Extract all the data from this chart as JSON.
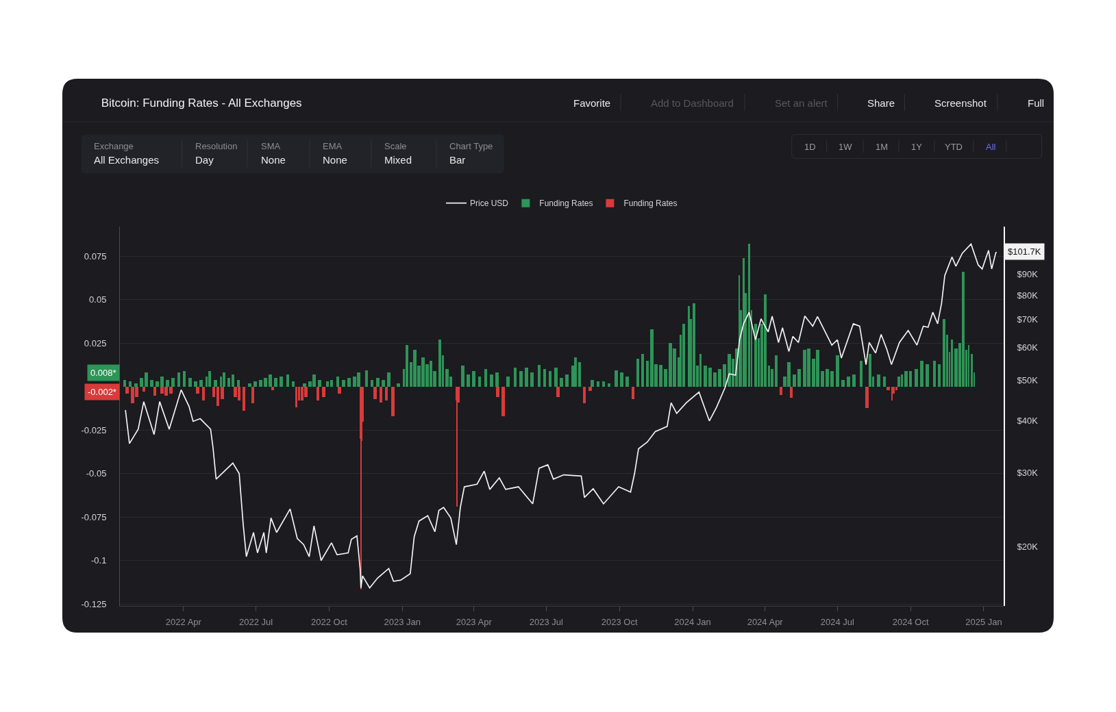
{
  "chart_data": {
    "type": "bar",
    "title": "Bitcoin: Funding Rates - All Exchanges",
    "xlim": [
      "2022-01-11",
      "2025-01-26"
    ],
    "xticks": [
      {
        "value": "2022-04-01",
        "label": "2022 Apr"
      },
      {
        "value": "2022-07-01",
        "label": "2022 Jul"
      },
      {
        "value": "2022-10-01",
        "label": "2022 Oct"
      },
      {
        "value": "2023-01-01",
        "label": "2023 Jan"
      },
      {
        "value": "2023-04-01",
        "label": "2023 Apr"
      },
      {
        "value": "2023-07-01",
        "label": "2023 Jul"
      },
      {
        "value": "2023-10-01",
        "label": "2023 Oct"
      },
      {
        "value": "2024-01-01",
        "label": "2024 Jan"
      },
      {
        "value": "2024-04-01",
        "label": "2024 Apr"
      },
      {
        "value": "2024-07-01",
        "label": "2024 Jul"
      },
      {
        "value": "2024-10-01",
        "label": "2024 Oct"
      },
      {
        "value": "2025-01-01",
        "label": "2025 Jan"
      }
    ],
    "ylim": [
      -0.126,
      0.092
    ],
    "yticks": [
      0.075,
      0.05,
      0.025,
      -0.025,
      -0.05,
      -0.075,
      -0.1,
      -0.125
    ],
    "y2lim": [
      14400,
      117000
    ],
    "y2ticks": [
      {
        "value": 20000,
        "label": "$20K"
      },
      {
        "value": 30000,
        "label": "$30K"
      },
      {
        "value": 40000,
        "label": "$40K"
      },
      {
        "value": 50000,
        "label": "$50K"
      },
      {
        "value": 60000,
        "label": "$60K"
      },
      {
        "value": 70000,
        "label": "$70K"
      },
      {
        "value": 80000,
        "label": "$80K"
      },
      {
        "value": 90000,
        "label": "$90K"
      }
    ],
    "log": "y2",
    "grid": "y",
    "legend": "top",
    "series": [
      {
        "name": "Price USD",
        "type": "line",
        "axis": "y2",
        "color": "#f2f2f2",
        "x": [
          "2022-01-18",
          "2022-01-23",
          "2022-02-03",
          "2022-02-10",
          "2022-02-23",
          "2022-03-02",
          "2022-03-14",
          "2022-03-29",
          "2022-04-08",
          "2022-04-13",
          "2022-04-22",
          "2022-05-05",
          "2022-05-08",
          "2022-05-12",
          "2022-06-02",
          "2022-06-10",
          "2022-06-15",
          "2022-06-19",
          "2022-06-28",
          "2022-07-03",
          "2022-07-11",
          "2022-07-14",
          "2022-07-20",
          "2022-07-27",
          "2022-08-13",
          "2022-08-22",
          "2022-08-30",
          "2022-09-06",
          "2022-09-12",
          "2022-09-21",
          "2022-10-04",
          "2022-10-11",
          "2022-10-25",
          "2022-10-29",
          "2022-11-05",
          "2022-11-09",
          "2022-11-10",
          "2022-11-12",
          "2022-11-21",
          "2022-12-01",
          "2022-12-15",
          "2022-12-21",
          "2022-12-30",
          "2023-01-11",
          "2023-01-16",
          "2023-01-22",
          "2023-02-02",
          "2023-02-11",
          "2023-02-16",
          "2023-02-22",
          "2023-03-03",
          "2023-03-10",
          "2023-03-15",
          "2023-03-20",
          "2023-04-05",
          "2023-04-14",
          "2023-04-21",
          "2023-05-03",
          "2023-05-11",
          "2023-05-27",
          "2023-06-14",
          "2023-06-22",
          "2023-07-03",
          "2023-07-10",
          "2023-07-23",
          "2023-08-14",
          "2023-08-18",
          "2023-08-29",
          "2023-09-11",
          "2023-09-30",
          "2023-10-15",
          "2023-10-20",
          "2023-10-25",
          "2023-11-05",
          "2023-11-15",
          "2023-11-30",
          "2023-12-05",
          "2023-12-12",
          "2023-12-24",
          "2024-01-09",
          "2024-01-22",
          "2024-01-31",
          "2024-02-11",
          "2024-02-16",
          "2024-02-24",
          "2024-02-29",
          "2024-03-05",
          "2024-03-12",
          "2024-03-20",
          "2024-03-27",
          "2024-04-05",
          "2024-04-10",
          "2024-04-18",
          "2024-04-23",
          "2024-05-01",
          "2024-05-06",
          "2024-05-13",
          "2024-05-21",
          "2024-05-31",
          "2024-06-06",
          "2024-06-24",
          "2024-07-01",
          "2024-07-06",
          "2024-07-21",
          "2024-07-29",
          "2024-08-06",
          "2024-08-10",
          "2024-08-18",
          "2024-08-25",
          "2024-09-01",
          "2024-09-07",
          "2024-09-17",
          "2024-09-28",
          "2024-10-09",
          "2024-10-17",
          "2024-10-23",
          "2024-10-29",
          "2024-11-04",
          "2024-11-09",
          "2024-11-13",
          "2024-11-22",
          "2024-11-27",
          "2024-12-05",
          "2024-12-16",
          "2024-12-25",
          "2024-12-30",
          "2025-01-07",
          "2025-01-11",
          "2025-01-16",
          "2025-01-17"
        ],
        "values": [
          42500,
          35300,
          38200,
          44500,
          37100,
          44500,
          38200,
          47500,
          43300,
          39900,
          40500,
          38200,
          34600,
          29000,
          31700,
          29900,
          22600,
          18900,
          21600,
          19300,
          21600,
          19300,
          23400,
          21600,
          24600,
          20900,
          20200,
          18900,
          22400,
          18500,
          20400,
          19100,
          19300,
          20800,
          21200,
          17700,
          15900,
          17000,
          15900,
          16800,
          17700,
          16500,
          16600,
          17200,
          21100,
          23000,
          23700,
          21700,
          24400,
          24800,
          23400,
          20200,
          24800,
          27800,
          28200,
          30300,
          27400,
          29200,
          27400,
          27800,
          25300,
          30800,
          31400,
          29000,
          29700,
          29500,
          26200,
          27500,
          25300,
          27800,
          27000,
          29900,
          34300,
          35600,
          37700,
          38800,
          44200,
          41700,
          44200,
          46900,
          40000,
          43100,
          48200,
          51900,
          51500,
          62600,
          68400,
          72900,
          62600,
          70300,
          65400,
          71300,
          61700,
          66900,
          58700,
          63800,
          61700,
          71400,
          67500,
          71200,
          60800,
          62600,
          56600,
          68400,
          67500,
          54600,
          61700,
          58200,
          64500,
          59500,
          54600,
          61700,
          65900,
          60800,
          67500,
          67100,
          72900,
          68400,
          76700,
          89300,
          98900,
          94000,
          101000,
          106300,
          94700,
          92600,
          102600,
          92600,
          101000,
          101700
        ]
      },
      {
        "name": "Funding Rates",
        "color": "#2e9457",
        "x": [
          "2022-01-17",
          "2022-01-24",
          "2022-01-31",
          "2022-02-07",
          "2022-02-13",
          "2022-02-20",
          "2022-02-27",
          "2022-03-05",
          "2022-03-12",
          "2022-03-19",
          "2022-03-26",
          "2022-04-02",
          "2022-04-09",
          "2022-04-16",
          "2022-04-23",
          "2022-04-30",
          "2022-05-04",
          "2022-05-11",
          "2022-05-18",
          "2022-05-22",
          "2022-05-28",
          "2022-06-02",
          "2022-06-09",
          "2022-06-23",
          "2022-06-30",
          "2022-07-07",
          "2022-07-13",
          "2022-07-19",
          "2022-07-26",
          "2022-08-02",
          "2022-08-10",
          "2022-08-17",
          "2022-08-31",
          "2022-09-07",
          "2022-09-12",
          "2022-09-19",
          "2022-09-29",
          "2022-10-04",
          "2022-10-12",
          "2022-10-19",
          "2022-10-26",
          "2022-11-02",
          "2022-11-07",
          "2022-11-17",
          "2022-11-24",
          "2022-12-01",
          "2022-12-08",
          "2022-12-15",
          "2022-12-27",
          "2023-01-03",
          "2023-01-07",
          "2023-01-12",
          "2023-01-17",
          "2023-01-22",
          "2023-01-27",
          "2023-02-01",
          "2023-02-06",
          "2023-02-11",
          "2023-02-17",
          "2023-02-21",
          "2023-02-26",
          "2023-03-03",
          "2023-03-18",
          "2023-03-25",
          "2023-04-01",
          "2023-04-08",
          "2023-04-16",
          "2023-04-23",
          "2023-04-30",
          "2023-05-14",
          "2023-05-23",
          "2023-05-30",
          "2023-06-06",
          "2023-06-13",
          "2023-06-22",
          "2023-06-29",
          "2023-07-06",
          "2023-07-13",
          "2023-07-20",
          "2023-07-27",
          "2023-08-03",
          "2023-08-07",
          "2023-08-12",
          "2023-08-28",
          "2023-09-04",
          "2023-09-11",
          "2023-09-18",
          "2023-09-27",
          "2023-10-04",
          "2023-10-11",
          "2023-10-24",
          "2023-10-30",
          "2023-11-05",
          "2023-11-11",
          "2023-11-16",
          "2023-11-22",
          "2023-11-28",
          "2023-12-04",
          "2023-12-09",
          "2023-12-14",
          "2023-12-17",
          "2023-12-21",
          "2023-12-27",
          "2023-12-30",
          "2024-01-03",
          "2024-01-07",
          "2024-01-11",
          "2024-01-17",
          "2024-01-23",
          "2024-01-29",
          "2024-02-04",
          "2024-02-10",
          "2024-02-16",
          "2024-02-21",
          "2024-02-25",
          "2024-02-29",
          "2024-03-02",
          "2024-03-05",
          "2024-03-08",
          "2024-03-12",
          "2024-03-15",
          "2024-03-20",
          "2024-03-24",
          "2024-03-28",
          "2024-04-01",
          "2024-04-06",
          "2024-04-10",
          "2024-04-15",
          "2024-04-26",
          "2024-05-01",
          "2024-05-08",
          "2024-05-14",
          "2024-05-21",
          "2024-05-26",
          "2024-06-01",
          "2024-06-06",
          "2024-06-12",
          "2024-06-18",
          "2024-06-24",
          "2024-07-01",
          "2024-07-08",
          "2024-07-15",
          "2024-07-22",
          "2024-07-31",
          "2024-08-11",
          "2024-08-15",
          "2024-08-22",
          "2024-08-29",
          "2024-09-16",
          "2024-09-20",
          "2024-09-25",
          "2024-10-01",
          "2024-10-08",
          "2024-10-15",
          "2024-10-22",
          "2024-10-31",
          "2024-11-06",
          "2024-11-12",
          "2024-11-16",
          "2024-11-19",
          "2024-11-22",
          "2024-11-27",
          "2024-12-02",
          "2024-12-06",
          "2024-12-10",
          "2024-12-13",
          "2024-12-17",
          "2024-12-20"
        ],
        "values": [
          0.004,
          0.003,
          0.002,
          0.005,
          0.008,
          0.004,
          0.003,
          0.006,
          0.004,
          0.005,
          0.008,
          0.009,
          0.005,
          0.003,
          0.004,
          0.006,
          0.009,
          0.004,
          0.006,
          0.008,
          0.005,
          0.007,
          0.004,
          0.002,
          0.003,
          0.004,
          0.005,
          0.007,
          0.005,
          0.006,
          0.007,
          0.003,
          0.002,
          0.003,
          0.007,
          0.004,
          0.003,
          0.004,
          0.006,
          0.004,
          0.005,
          0.006,
          0.008,
          0.0095,
          0.004,
          0.005,
          0.004,
          0.008,
          0.002,
          0.01,
          0.024,
          0.014,
          0.021,
          0.012,
          0.017,
          0.013,
          0.015,
          0.009,
          0.027,
          0.018,
          0.01,
          0.006,
          0.012,
          0.007,
          0.009,
          0.006,
          0.01,
          0.007,
          0.008,
          0.006,
          0.011,
          0.009,
          0.011,
          0.008,
          0.0125,
          0.01,
          0.009,
          0.011,
          0.005,
          0.007,
          0.012,
          0.017,
          0.014,
          0.004,
          0.003,
          0.003,
          0.002,
          0.0095,
          0.008,
          0.006,
          0.016,
          0.019,
          0.015,
          0.033,
          0.013,
          0.0125,
          0.01,
          0.025,
          0.022,
          0.017,
          0.03,
          0.036,
          0.0465,
          0.039,
          0.048,
          0.012,
          0.019,
          0.012,
          0.011,
          0.008,
          0.01,
          0.013,
          0.019,
          0.016,
          0.022,
          0.064,
          0.044,
          0.074,
          0.054,
          0.082,
          0.044,
          0.036,
          0.028,
          0.036,
          0.053,
          0.012,
          0.01,
          0.018,
          0.006,
          0.014,
          0.007,
          0.01,
          0.021,
          0.022,
          0.016,
          0.021,
          0.009,
          0.01,
          0.009,
          0.018,
          0.004,
          0.006,
          0.007,
          0.015,
          0.019,
          0.006,
          0.007,
          0.006,
          0.006,
          0.007,
          0.009,
          0.009,
          0.01,
          0.015,
          0.013,
          0.015,
          0.013,
          0.039,
          0.03,
          0.02,
          0.027,
          0.022,
          0.025,
          0.066,
          0.021,
          0.024,
          0.019,
          0.008
        ]
      },
      {
        "name": "Funding Rates",
        "color": "#d93a3a",
        "x": [
          "2022-01-20",
          "2022-01-27",
          "2022-02-01",
          "2022-02-10",
          "2022-02-24",
          "2022-03-05",
          "2022-03-10",
          "2022-03-16",
          "2022-04-19",
          "2022-04-26",
          "2022-05-09",
          "2022-05-14",
          "2022-05-20",
          "2022-06-05",
          "2022-06-10",
          "2022-06-16",
          "2022-06-27",
          "2022-07-22",
          "2022-08-21",
          "2022-08-24",
          "2022-08-28",
          "2022-09-02",
          "2022-09-17",
          "2022-09-24",
          "2022-10-14",
          "2022-11-09",
          "2022-11-10",
          "2022-11-11",
          "2022-11-13",
          "2022-11-28",
          "2022-12-05",
          "2022-12-12",
          "2022-12-20",
          "2023-03-10",
          "2023-03-11",
          "2023-03-13",
          "2023-05-01",
          "2023-05-08",
          "2023-07-16",
          "2023-08-18",
          "2023-08-25",
          "2023-10-18",
          "2024-04-21",
          "2024-05-04",
          "2024-08-07",
          "2024-09-03",
          "2024-09-08",
          "2024-09-10",
          "2024-09-13"
        ],
        "values": [
          -0.004,
          -0.0094,
          -0.006,
          -0.003,
          -0.005,
          -0.004,
          -0.005,
          -0.004,
          -0.004,
          -0.0078,
          -0.006,
          -0.011,
          -0.007,
          -0.006,
          -0.008,
          -0.0139,
          -0.0094,
          -0.002,
          -0.012,
          -0.008,
          -0.0078,
          -0.006,
          -0.0078,
          -0.006,
          -0.004,
          -0.03,
          -0.1164,
          -0.031,
          -0.02,
          -0.007,
          -0.009,
          -0.008,
          -0.017,
          -0.008,
          -0.069,
          -0.009,
          -0.006,
          -0.0169,
          -0.006,
          -0.0094,
          -0.0026,
          -0.0071,
          -0.0048,
          -0.0063,
          -0.0124,
          -0.002,
          -0.0078,
          -0.004,
          -0.002
        ]
      }
    ],
    "annotations": [
      "0.008*",
      "-0.002*",
      "$101.7K",
      "Favorite",
      "Add to Dashboard",
      "Set an alert",
      "Share",
      "Screenshot",
      "Full",
      "Exchange",
      "All Exchanges",
      "Resolution",
      "Day",
      "SMA",
      "None",
      "EMA",
      "None",
      "Scale",
      "Mixed",
      "Chart Type",
      "Bar",
      "1D",
      "1W",
      "1M",
      "1Y",
      "YTD",
      "All"
    ]
  }
}
